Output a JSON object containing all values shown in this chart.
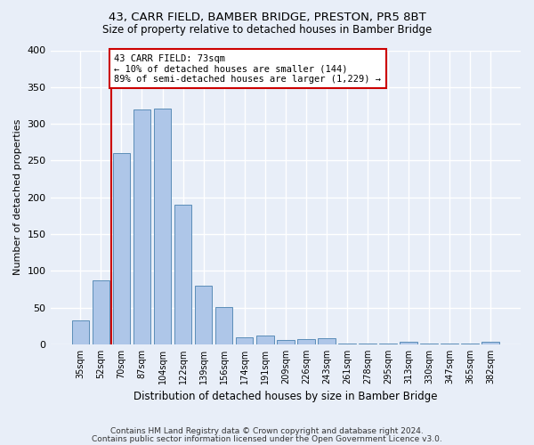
{
  "title": "43, CARR FIELD, BAMBER BRIDGE, PRESTON, PR5 8BT",
  "subtitle": "Size of property relative to detached houses in Bamber Bridge",
  "xlabel": "Distribution of detached houses by size in Bamber Bridge",
  "ylabel": "Number of detached properties",
  "footer1": "Contains HM Land Registry data © Crown copyright and database right 2024.",
  "footer2": "Contains public sector information licensed under the Open Government Licence v3.0.",
  "categories": [
    "35sqm",
    "52sqm",
    "70sqm",
    "87sqm",
    "104sqm",
    "122sqm",
    "139sqm",
    "156sqm",
    "174sqm",
    "191sqm",
    "209sqm",
    "226sqm",
    "243sqm",
    "261sqm",
    "278sqm",
    "295sqm",
    "313sqm",
    "330sqm",
    "347sqm",
    "365sqm",
    "382sqm"
  ],
  "values": [
    33,
    87,
    260,
    320,
    321,
    190,
    80,
    51,
    10,
    12,
    6,
    7,
    8,
    1,
    1,
    1,
    4,
    1,
    1,
    1,
    4
  ],
  "bar_color": "#aec6e8",
  "bar_edge_color": "#5b8db8",
  "bg_color": "#e8eef8",
  "grid_color": "#ffffff",
  "vline_x": 2.0,
  "vline_color": "#cc0000",
  "annotation_text": "43 CARR FIELD: 73sqm\n← 10% of detached houses are smaller (144)\n89% of semi-detached houses are larger (1,229) →",
  "annotation_box_color": "white",
  "annotation_box_edge": "#cc0000",
  "ylim": [
    0,
    400
  ],
  "yticks": [
    0,
    50,
    100,
    150,
    200,
    250,
    300,
    350,
    400
  ]
}
